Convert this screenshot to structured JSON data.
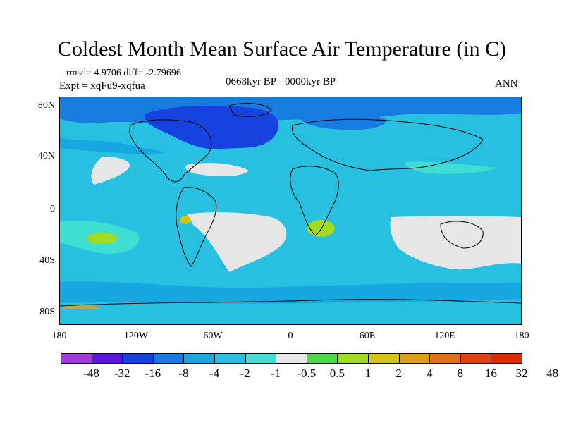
{
  "title": "Coldest Month Mean Surface Air Temperature (in C)",
  "stats": {
    "rmsd_line": "rmsd= 4.9706  diff= -2.79696",
    "expt_line": "Expt = xqFu9-xqfua",
    "period": "0668kyr BP - 0000kyr BP",
    "season": "ANN"
  },
  "map": {
    "projection": "cylindrical equidistant",
    "lon_range": [
      -180,
      180
    ],
    "lat_range": [
      -90,
      90
    ],
    "coastlines": true
  },
  "axes": {
    "y_ticks": [
      "80N",
      "40N",
      "0",
      "40S",
      "80S"
    ],
    "x_ticks": [
      "180",
      "120W",
      "60W",
      "0",
      "60E",
      "120E",
      "180"
    ]
  },
  "colorbar": {
    "colors": [
      "#a13be0",
      "#5b16e0",
      "#1643e0",
      "#167ce0",
      "#16a6e0",
      "#27c0e0",
      "#3edfd2",
      "#e6e6e6",
      "#4ed74e",
      "#a2db1e",
      "#d2c814",
      "#dca014",
      "#e07414",
      "#e04214",
      "#e02a00"
    ],
    "labels": [
      "-48",
      "-32",
      "-16",
      "-8",
      "-4",
      "-2",
      "-1",
      "-0.5",
      "0.5",
      "1",
      "2",
      "4",
      "8",
      "16",
      "32",
      "48"
    ]
  },
  "chart_data": {
    "type": "heatmap",
    "title": "Coldest Month Mean Surface Air Temperature (in C)",
    "subtitle": "0668kyr BP - 0000kyr BP",
    "units": "C",
    "x_ticks": [
      "180",
      "120W",
      "60W",
      "0",
      "60E",
      "120E",
      "180"
    ],
    "y_ticks": [
      "80N",
      "40N",
      "0",
      "40S",
      "80S"
    ],
    "contour_levels": [
      -48,
      -32,
      -16,
      -8,
      -4,
      -2,
      -1,
      -0.5,
      0.5,
      1,
      2,
      4,
      8,
      16,
      32,
      48
    ],
    "rmsd": 4.9706,
    "diff": -2.79696
  }
}
